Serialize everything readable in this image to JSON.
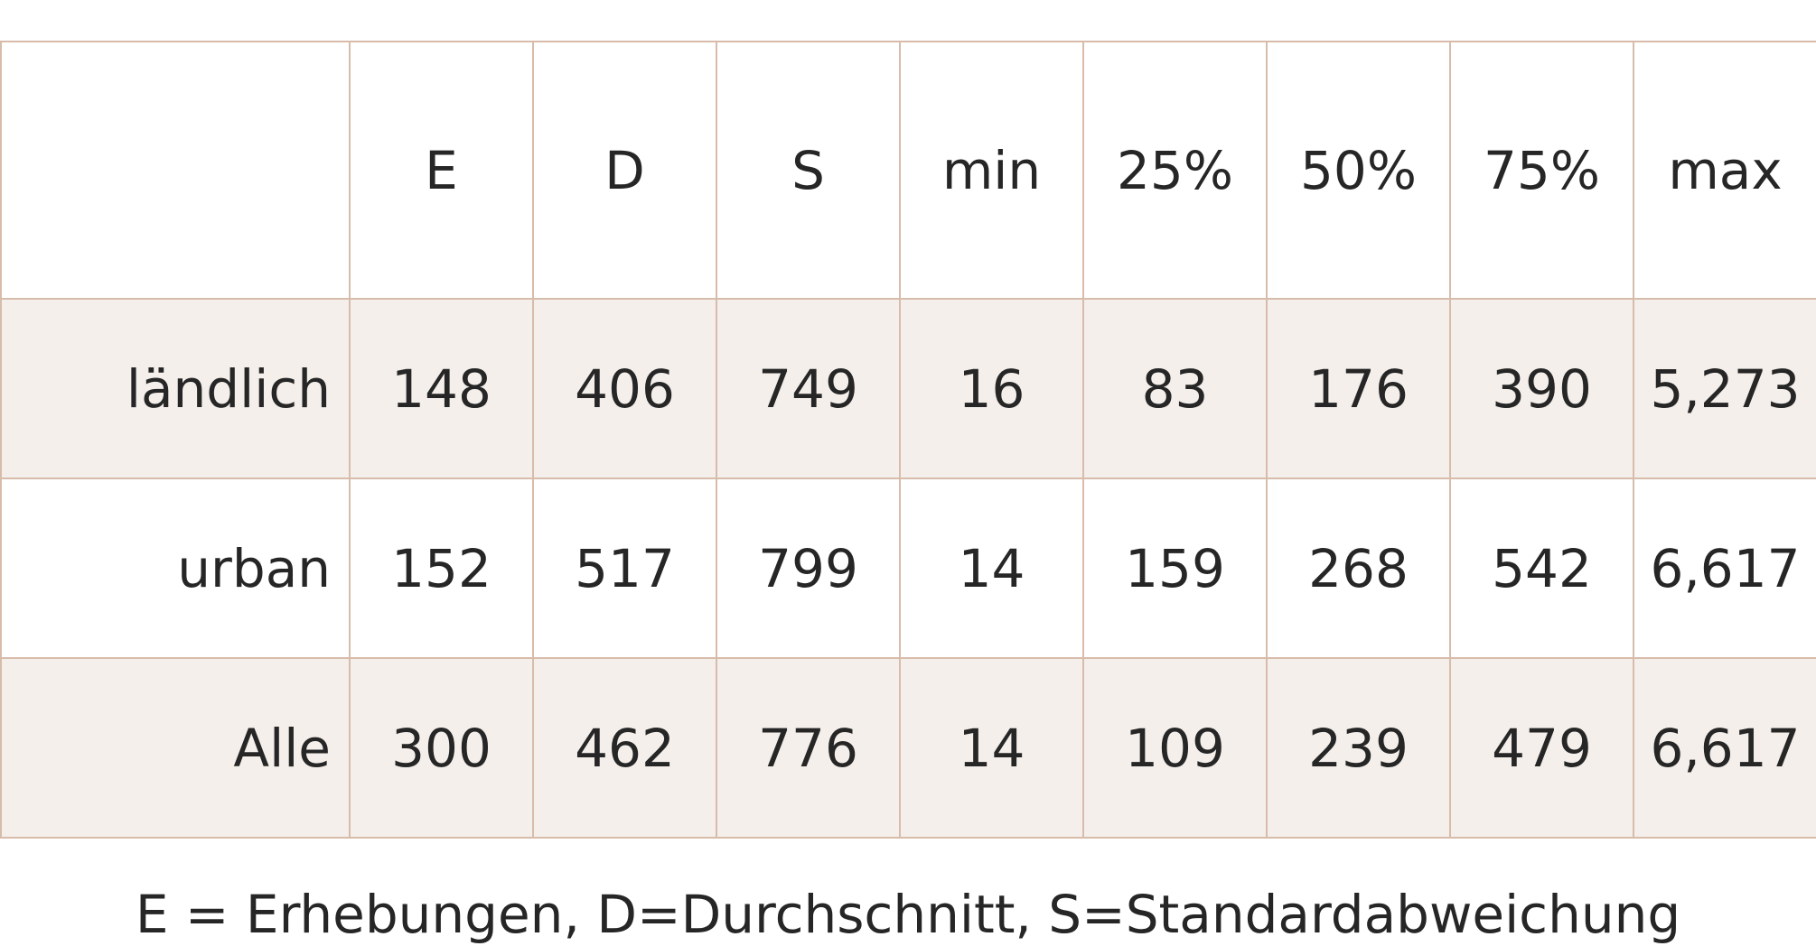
{
  "chart_data": {
    "type": "table",
    "columns": [
      "",
      "E",
      "D",
      "S",
      "min",
      "25%",
      "50%",
      "75%",
      "max"
    ],
    "rows": [
      {
        "label": "ländlich",
        "values": [
          "148",
          "406",
          "749",
          "16",
          "83",
          "176",
          "390",
          "5,273"
        ]
      },
      {
        "label": "urban",
        "values": [
          "152",
          "517",
          "799",
          "14",
          "159",
          "268",
          "542",
          "6,617"
        ]
      },
      {
        "label": "Alle",
        "values": [
          "300",
          "462",
          "776",
          "14",
          "109",
          "239",
          "479",
          "6,617"
        ]
      }
    ],
    "footnote": "E = Erhebungen, D=Durchschnitt, S=Standardabweichung"
  },
  "colors": {
    "border": "#d8bcab",
    "shaded_row": "#f4efeb",
    "text": "#262626"
  }
}
